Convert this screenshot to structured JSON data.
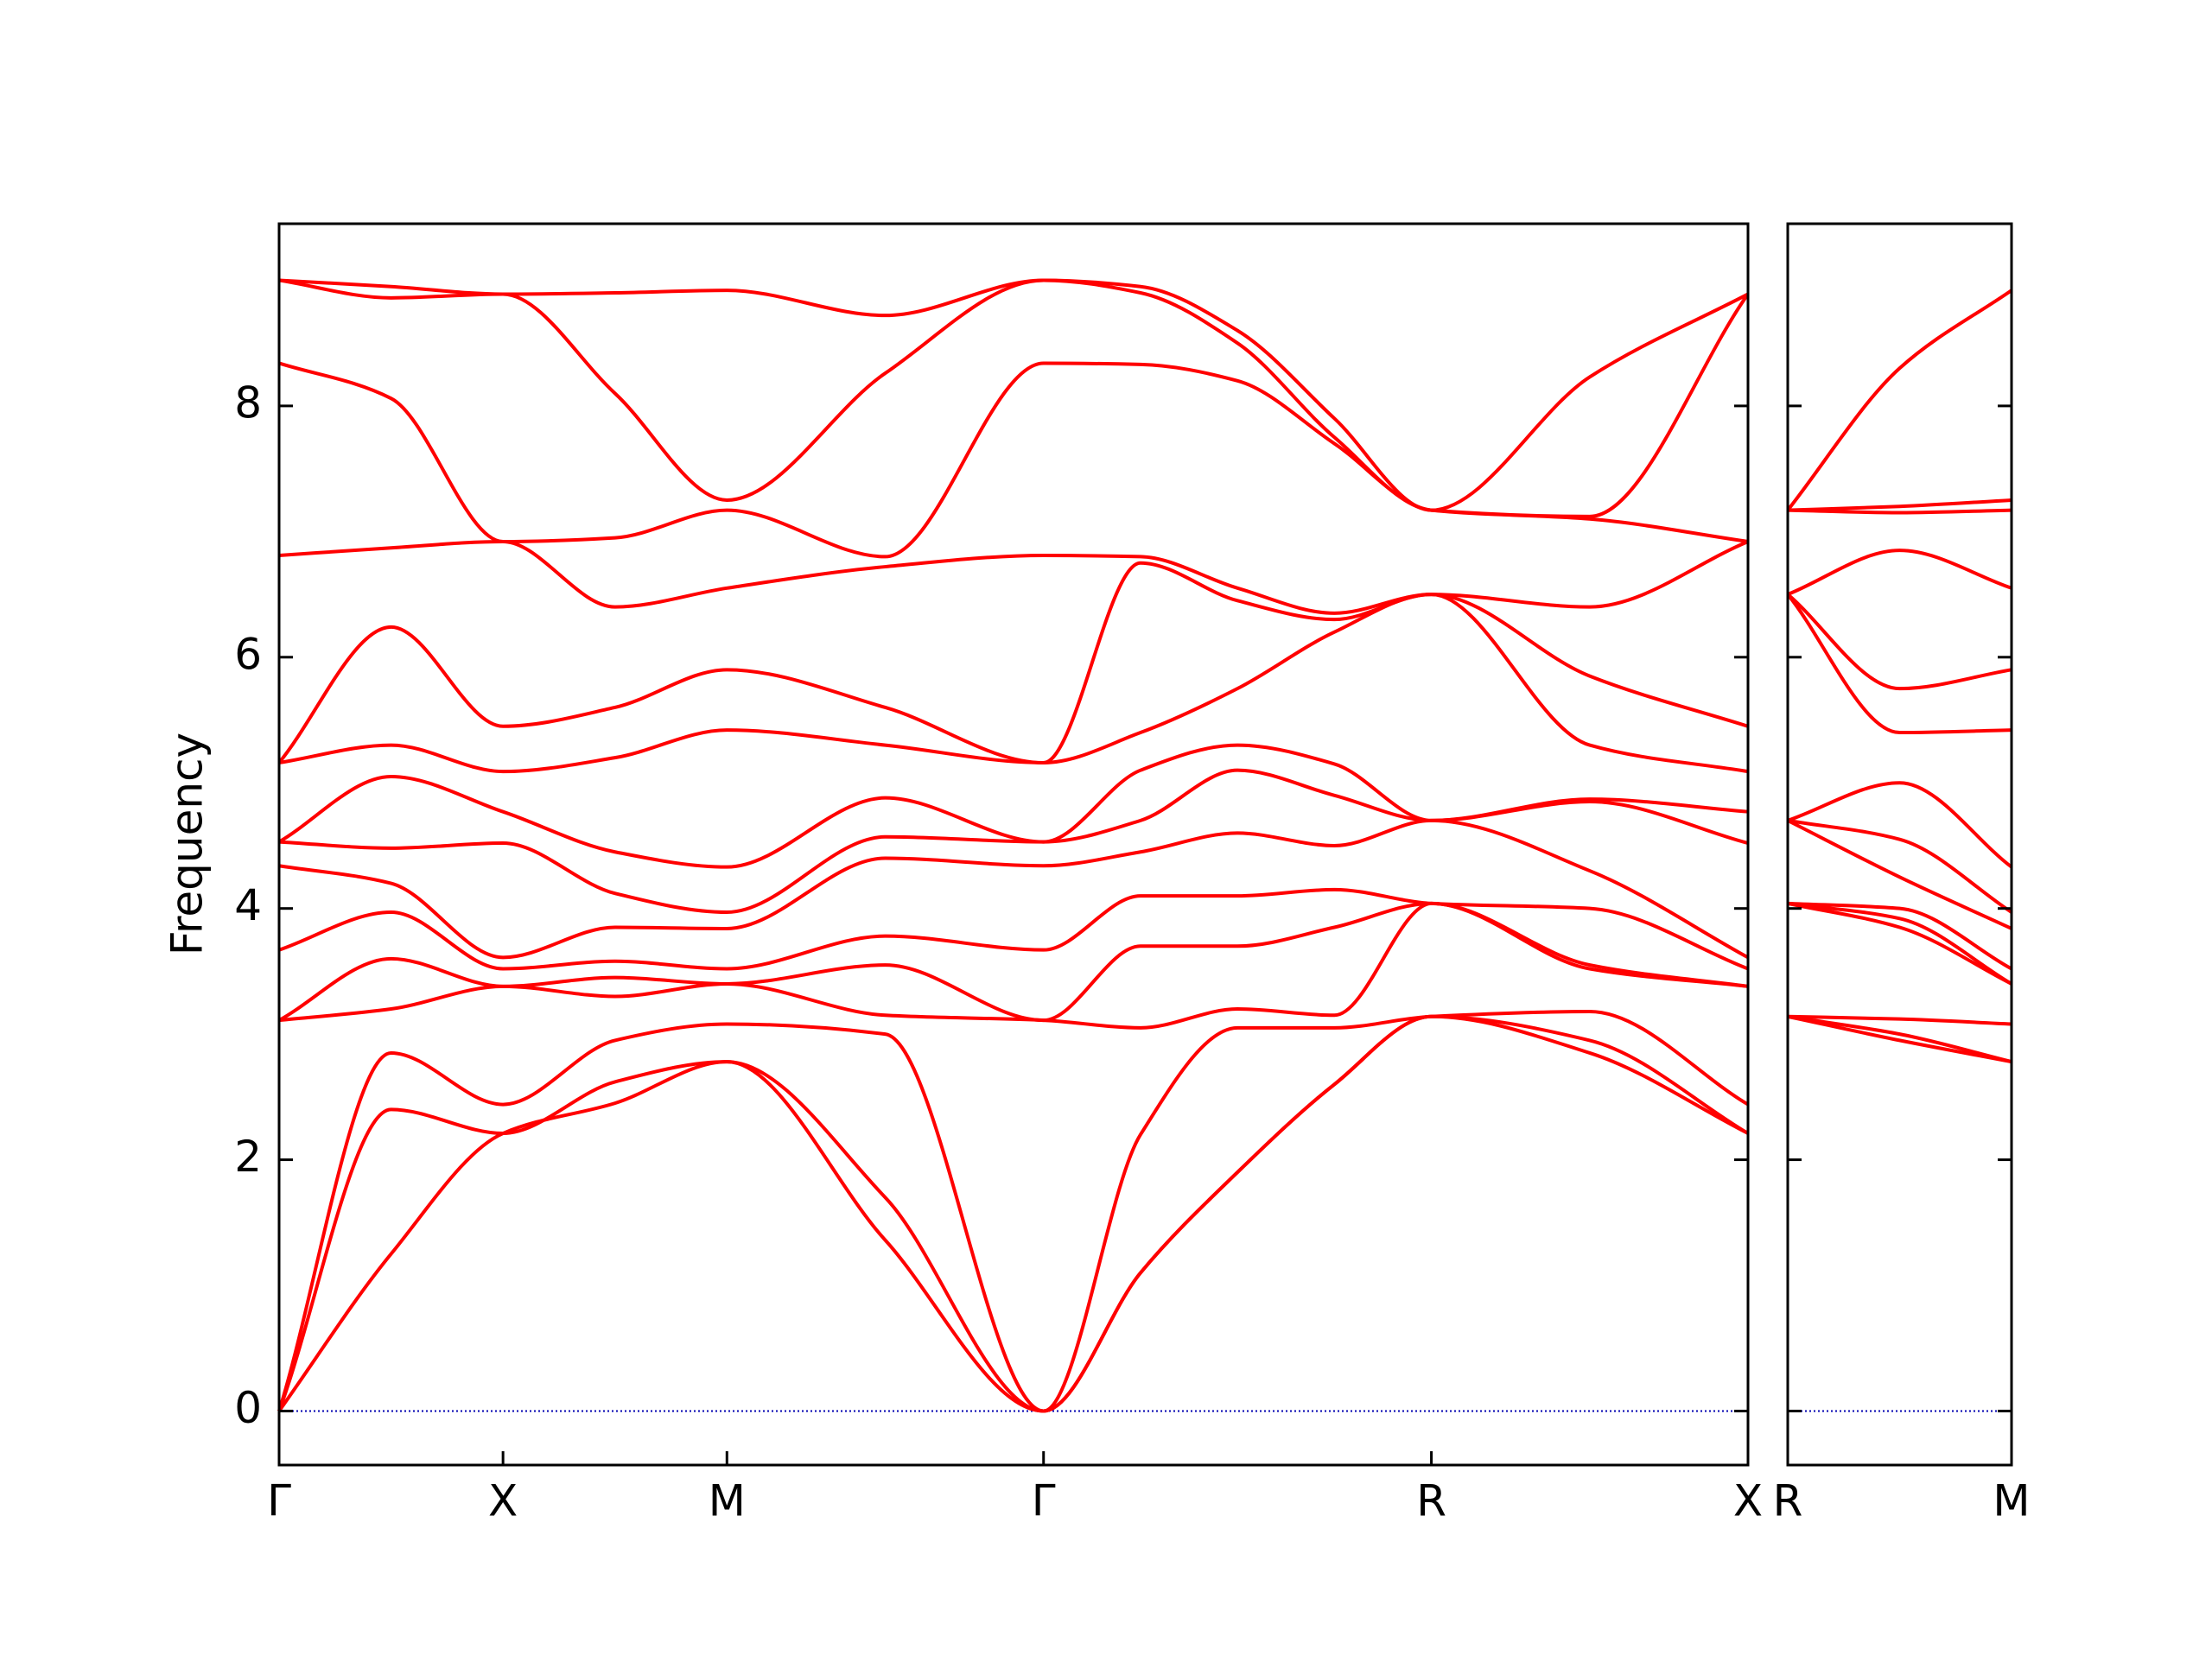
{
  "chart_data": [
    {
      "type": "line",
      "ylabel": "Frequency",
      "color": "#ff0000",
      "xlim": [
        0,
        6.56
      ],
      "ylim": [
        -0.43,
        9.45
      ],
      "yticks": [
        0,
        2,
        4,
        6,
        8
      ],
      "xticks": [
        {
          "value": 0,
          "label": "Γ"
        },
        {
          "value": 1,
          "label": "X"
        },
        {
          "value": 2,
          "label": "M"
        },
        {
          "value": 3.414,
          "label": "Γ"
        },
        {
          "value": 5.146,
          "label": "R"
        },
        {
          "value": 6.56,
          "label": "X"
        }
      ],
      "x": [
        0,
        0.5,
        1,
        1.5,
        2,
        2.707,
        3.414,
        3.847,
        4.28,
        4.713,
        5.146,
        5.853,
        6.56
      ],
      "series": [
        {
          "values": [
            0,
            1.25,
            2.21,
            2.45,
            2.78,
            1.36,
            0,
            1.1,
            1.9,
            2.6,
            3.14,
            2.85,
            2.21
          ]
        },
        {
          "values": [
            0,
            2.4,
            2.21,
            2.62,
            2.78,
            1.7,
            0,
            1.1,
            1.9,
            2.6,
            3.14,
            2.95,
            2.21
          ]
        },
        {
          "values": [
            0,
            2.85,
            2.44,
            2.95,
            3.08,
            3.0,
            0,
            2.2,
            3.05,
            3.05,
            3.14,
            3.18,
            2.44
          ]
        },
        {
          "values": [
            3.11,
            3.2,
            3.38,
            3.3,
            3.4,
            3.15,
            3.11,
            3.05,
            3.2,
            3.15,
            4.04,
            3.52,
            3.38
          ]
        },
        {
          "values": [
            3.11,
            3.6,
            3.38,
            3.45,
            3.4,
            3.55,
            3.11,
            3.7,
            3.7,
            3.85,
            4.04,
            3.55,
            3.38
          ]
        },
        {
          "values": [
            3.67,
            3.97,
            3.52,
            3.58,
            3.52,
            3.78,
            3.67,
            4.1,
            4.1,
            4.15,
            4.04,
            4.0,
            3.52
          ]
        },
        {
          "values": [
            4.34,
            4.2,
            3.61,
            3.85,
            3.84,
            4.4,
            4.34,
            4.45,
            4.6,
            4.5,
            4.7,
            4.3,
            3.61
          ]
        },
        {
          "values": [
            4.53,
            4.48,
            4.52,
            4.12,
            3.97,
            4.57,
            4.53,
            4.7,
            5.1,
            4.9,
            4.7,
            4.85,
            4.52
          ]
        },
        {
          "values": [
            4.53,
            5.05,
            4.77,
            4.45,
            4.33,
            4.88,
            4.53,
            5.1,
            5.3,
            5.15,
            4.7,
            4.87,
            4.77
          ]
        },
        {
          "values": [
            5.16,
            5.3,
            5.09,
            5.2,
            5.42,
            5.3,
            5.16,
            5.4,
            5.75,
            6.2,
            6.5,
            5.3,
            5.09
          ]
        },
        {
          "values": [
            5.16,
            6.24,
            5.45,
            5.6,
            5.9,
            5.6,
            5.16,
            6.75,
            6.45,
            6.3,
            6.5,
            5.85,
            5.45
          ]
        },
        {
          "values": [
            6.81,
            6.87,
            6.92,
            6.4,
            6.55,
            6.72,
            6.81,
            6.8,
            6.55,
            6.35,
            6.5,
            6.4,
            6.92
          ]
        },
        {
          "values": [
            8.34,
            8.06,
            6.92,
            6.95,
            7.17,
            6.8,
            8.34,
            8.33,
            8.2,
            7.7,
            7.17,
            7.1,
            6.92
          ]
        },
        {
          "values": [
            9.0,
            8.86,
            8.89,
            8.1,
            7.25,
            8.26,
            9.0,
            8.9,
            8.5,
            7.75,
            7.17,
            7.12,
            8.89
          ]
        },
        {
          "values": [
            9.0,
            8.95,
            8.89,
            8.9,
            8.92,
            8.72,
            9.0,
            8.95,
            8.6,
            7.9,
            7.17,
            8.23,
            8.89
          ]
        }
      ]
    },
    {
      "type": "line",
      "color": "#ff0000",
      "xlim": [
        0,
        1
      ],
      "ylim": [
        -0.43,
        9.45
      ],
      "yticks": [
        0,
        2,
        4,
        6,
        8
      ],
      "xticks": [
        {
          "value": 0,
          "label": "R"
        },
        {
          "value": 1,
          "label": "M"
        }
      ],
      "x": [
        0,
        0.5,
        1
      ],
      "series": [
        {
          "values": [
            3.14,
            2.95,
            2.78
          ]
        },
        {
          "values": [
            3.14,
            3.0,
            2.78
          ]
        },
        {
          "values": [
            3.14,
            3.12,
            3.08
          ]
        },
        {
          "values": [
            4.04,
            3.85,
            3.4
          ]
        },
        {
          "values": [
            4.04,
            3.92,
            3.4
          ]
        },
        {
          "values": [
            4.04,
            4.0,
            3.52
          ]
        },
        {
          "values": [
            4.7,
            4.25,
            3.84
          ]
        },
        {
          "values": [
            4.7,
            4.55,
            3.97
          ]
        },
        {
          "values": [
            4.7,
            5.0,
            4.33
          ]
        },
        {
          "values": [
            6.5,
            5.4,
            5.42
          ]
        },
        {
          "values": [
            6.5,
            5.75,
            5.9
          ]
        },
        {
          "values": [
            6.5,
            6.85,
            6.55
          ]
        },
        {
          "values": [
            7.17,
            7.15,
            7.17
          ]
        },
        {
          "values": [
            7.17,
            7.2,
            7.25
          ]
        },
        {
          "values": [
            7.17,
            8.3,
            8.92
          ]
        }
      ]
    }
  ]
}
